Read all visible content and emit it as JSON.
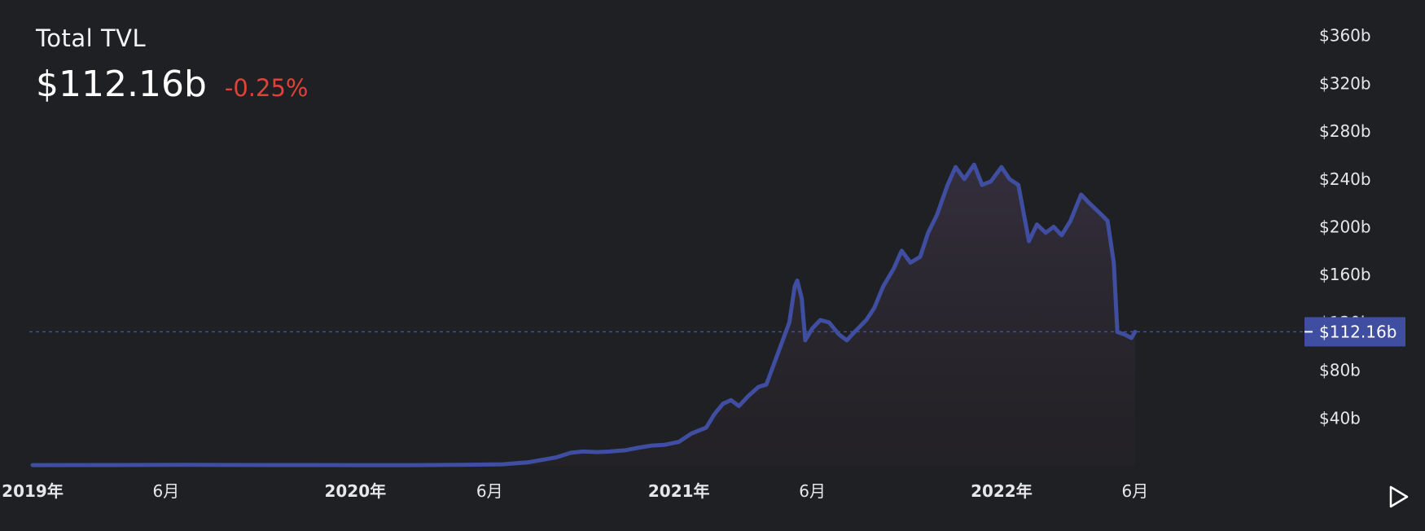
{
  "header": {
    "title": "Total TVL",
    "value": "$112.16b",
    "change": "-0.25%"
  },
  "colors": {
    "background": "#1f2024",
    "line": "#3f4ea0",
    "negative": "#e0423a",
    "marker_bg": "#3f4ea0"
  },
  "play_icon": "play-icon",
  "chart_data": {
    "type": "area",
    "title": "Total TVL",
    "xlabel": "",
    "ylabel": "",
    "ylim": [
      0,
      380
    ],
    "y_unit": "b",
    "yticks": [
      40,
      80,
      120,
      160,
      200,
      240,
      280,
      320,
      360
    ],
    "ytick_labels": [
      "$40b",
      "$80b",
      "$120b",
      "$160b",
      "$200b",
      "$240b",
      "$280b",
      "$320b",
      "$360b"
    ],
    "y_axis_position": "right",
    "grid": false,
    "xlim": [
      "2019-01-01",
      "2022-11-01"
    ],
    "xticks": [
      {
        "date": "2019-01-01",
        "label": "2019年"
      },
      {
        "date": "2019-06-01",
        "label": "6月"
      },
      {
        "date": "2020-01-01",
        "label": "2020年"
      },
      {
        "date": "2020-06-01",
        "label": "6月"
      },
      {
        "date": "2021-01-01",
        "label": "2021年"
      },
      {
        "date": "2021-06-01",
        "label": "6月"
      },
      {
        "date": "2022-01-01",
        "label": "2022年"
      },
      {
        "date": "2022-06-01",
        "label": "6月"
      }
    ],
    "current_marker": {
      "value": 112.16,
      "label": "$112.16b"
    },
    "series": [
      {
        "points": [
          [
            "2019-01-01",
            0.6
          ],
          [
            "2019-04-01",
            0.7
          ],
          [
            "2019-07-01",
            0.8
          ],
          [
            "2019-10-01",
            0.7
          ],
          [
            "2020-01-01",
            0.6
          ],
          [
            "2020-03-01",
            0.6
          ],
          [
            "2020-05-01",
            0.8
          ],
          [
            "2020-06-15",
            1.3
          ],
          [
            "2020-07-15",
            3.0
          ],
          [
            "2020-08-15",
            7.0
          ],
          [
            "2020-09-01",
            11.0
          ],
          [
            "2020-09-15",
            12.0
          ],
          [
            "2020-10-01",
            11.5
          ],
          [
            "2020-10-15",
            12.0
          ],
          [
            "2020-11-01",
            13.0
          ],
          [
            "2020-11-15",
            15.0
          ],
          [
            "2020-12-01",
            17.0
          ],
          [
            "2020-12-15",
            17.5
          ],
          [
            "2021-01-01",
            20.0
          ],
          [
            "2021-01-15",
            27.0
          ],
          [
            "2021-02-01",
            32.0
          ],
          [
            "2021-02-10",
            43.0
          ],
          [
            "2021-02-20",
            52.0
          ],
          [
            "2021-03-01",
            55.0
          ],
          [
            "2021-03-10",
            50.0
          ],
          [
            "2021-03-20",
            58.0
          ],
          [
            "2021-04-01",
            66.0
          ],
          [
            "2021-04-10",
            68.0
          ],
          [
            "2021-04-20",
            88.0
          ],
          [
            "2021-05-01",
            110.0
          ],
          [
            "2021-05-06",
            120.0
          ],
          [
            "2021-05-12",
            150.0
          ],
          [
            "2021-05-15",
            155.0
          ],
          [
            "2021-05-20",
            140.0
          ],
          [
            "2021-05-24",
            105.0
          ],
          [
            "2021-06-01",
            115.0
          ],
          [
            "2021-06-10",
            122.0
          ],
          [
            "2021-06-20",
            120.0
          ],
          [
            "2021-07-01",
            110.0
          ],
          [
            "2021-07-10",
            105.0
          ],
          [
            "2021-07-20",
            113.0
          ],
          [
            "2021-08-01",
            122.0
          ],
          [
            "2021-08-10",
            132.0
          ],
          [
            "2021-08-20",
            150.0
          ],
          [
            "2021-09-01",
            165.0
          ],
          [
            "2021-09-10",
            180.0
          ],
          [
            "2021-09-20",
            170.0
          ],
          [
            "2021-10-01",
            175.0
          ],
          [
            "2021-10-10",
            195.0
          ],
          [
            "2021-10-20",
            210.0
          ],
          [
            "2021-11-01",
            235.0
          ],
          [
            "2021-11-10",
            250.0
          ],
          [
            "2021-11-20",
            240.0
          ],
          [
            "2021-12-01",
            252.0
          ],
          [
            "2021-12-10",
            235.0
          ],
          [
            "2021-12-20",
            238.0
          ],
          [
            "2022-01-01",
            250.0
          ],
          [
            "2022-01-10",
            240.0
          ],
          [
            "2022-01-20",
            235.0
          ],
          [
            "2022-02-01",
            188.0
          ],
          [
            "2022-02-10",
            202.0
          ],
          [
            "2022-02-20",
            195.0
          ],
          [
            "2022-03-01",
            200.0
          ],
          [
            "2022-03-10",
            193.0
          ],
          [
            "2022-03-20",
            205.0
          ],
          [
            "2022-04-01",
            227.0
          ],
          [
            "2022-04-10",
            220.0
          ],
          [
            "2022-04-20",
            213.0
          ],
          [
            "2022-05-01",
            205.0
          ],
          [
            "2022-05-08",
            170.0
          ],
          [
            "2022-05-12",
            112.0
          ],
          [
            "2022-05-20",
            110.0
          ],
          [
            "2022-05-28",
            107.0
          ],
          [
            "2022-06-01",
            112.16
          ]
        ]
      }
    ]
  }
}
